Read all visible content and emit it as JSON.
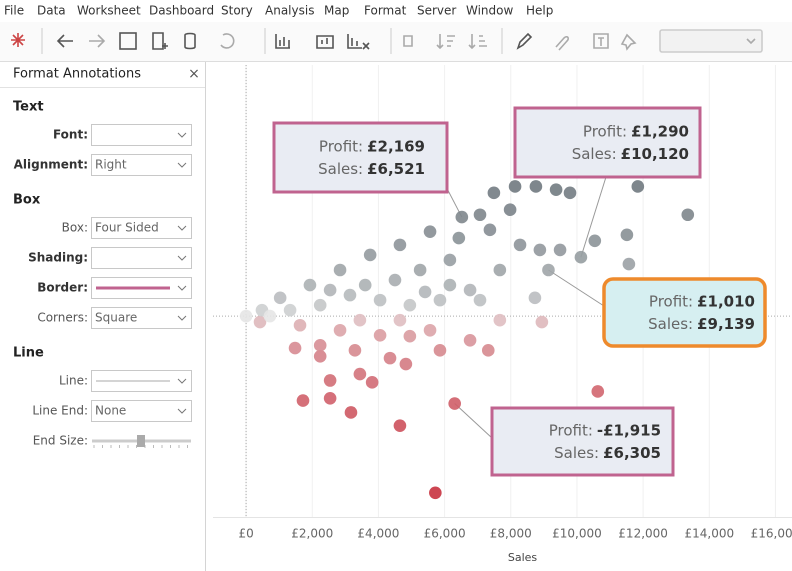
{
  "menu": [
    "File",
    "Data",
    "Worksheet",
    "Dashboard",
    "Story",
    "Analysis",
    "Map",
    "Format",
    "Server",
    "Window",
    "Help"
  ],
  "format_pane": {
    "title": "Format Annotations",
    "close": "×",
    "sections": [
      {
        "title": "Text",
        "rows": [
          {
            "label": "Font:",
            "value": ""
          },
          {
            "label": "Alignment:",
            "value": "Right"
          }
        ]
      },
      {
        "title": "Box",
        "rows": [
          {
            "label": "Box:",
            "value": "Four Sided"
          },
          {
            "label": "Shading:",
            "value": ""
          },
          {
            "label": "Border:",
            "value": ""
          },
          {
            "label": "Corners:",
            "value": "Square"
          }
        ]
      },
      {
        "title": "Line",
        "rows": [
          {
            "label": "Line:",
            "value": ""
          },
          {
            "label": "Line End:",
            "value": "None"
          },
          {
            "label": "End Size:",
            "value": ""
          }
        ]
      }
    ]
  },
  "chart_data": {
    "type": "scatter",
    "xlabel": "Sales",
    "x": [
      6521,
      10120,
      9139,
      6305,
      8640,
      8130,
      8760,
      9370,
      9790,
      11840,
      13350,
      11510,
      10540,
      11570,
      8730,
      8940,
      10630,
      11990,
      5720,
      4650,
      1720,
      2540,
      3170,
      3440,
      4830,
      1480,
      2240,
      420,
      0,
      7490,
      6430,
      5560,
      4650,
      3750,
      2840,
      1930,
      1030,
      480,
      7370,
      8280,
      7670,
      6770,
      5860,
      4950,
      4050,
      3140,
      2240,
      1330,
      7070,
      5560,
      4050,
      2840,
      1630,
      6770,
      7670,
      5860,
      4350,
      3290,
      7320,
      5260,
      6160,
      4500,
      3600,
      2540,
      4650,
      3440,
      720,
      7980,
      7070,
      8880,
      9490,
      6160,
      5410,
      2240,
      4950,
      3810,
      2540
    ],
    "values": [
      2169,
      1290,
      1010,
      -1915,
      3930,
      2840,
      2840,
      2770,
      2700,
      2840,
      2220,
      1780,
      1650,
      1140,
      400,
      -130,
      -1650,
      -440,
      -3870,
      -2400,
      -1850,
      -1800,
      -2110,
      -1270,
      -1050,
      -700,
      -880,
      -130,
      0,
      2700,
      1710,
      1850,
      1560,
      1340,
      1010,
      680,
      400,
      130,
      1890,
      1560,
      1010,
      570,
      350,
      240,
      350,
      460,
      240,
      130,
      350,
      -310,
      -420,
      -310,
      -200,
      -530,
      -90,
      -750,
      -920,
      -750,
      -750,
      1010,
      1230,
      790,
      680,
      570,
      -90,
      -90,
      0,
      2330,
      2220,
      1450,
      1450,
      680,
      530,
      -640,
      -440,
      -1450,
      -1410
    ],
    "color_scale": {
      "negative": "#c8323f",
      "zero": "#e6e6e6",
      "positive": "#5b666e"
    },
    "xlim": [
      -1000,
      16500
    ],
    "ylim": [
      -4400,
      5500
    ],
    "xticks": [
      {
        "value": 0,
        "label": "£0"
      },
      {
        "value": 2000,
        "label": "£2,000"
      },
      {
        "value": 4000,
        "label": "£4,000"
      },
      {
        "value": 6000,
        "label": "£6,000"
      },
      {
        "value": 8000,
        "label": "£8,000"
      },
      {
        "value": 10000,
        "label": "£10,000"
      },
      {
        "value": 12000,
        "label": "£12,000"
      },
      {
        "value": 14000,
        "label": "£14,000"
      },
      {
        "value": 16000,
        "label": "£16,000"
      }
    ],
    "annotations": [
      {
        "profit_label": "Profit:",
        "profit": "£2,169",
        "sales_label": "Sales:",
        "sales": "£6,521"
      },
      {
        "profit_label": "Profit:",
        "profit": "£1,290",
        "sales_label": "Sales:",
        "sales": "£10,120"
      },
      {
        "profit_label": "Profit:",
        "profit": "£1,010",
        "sales_label": "Sales:",
        "sales": "£9,139"
      },
      {
        "profit_label": "Profit:",
        "profit": "-£1,915",
        "sales_label": "Sales:",
        "sales": "£6,305"
      }
    ]
  }
}
